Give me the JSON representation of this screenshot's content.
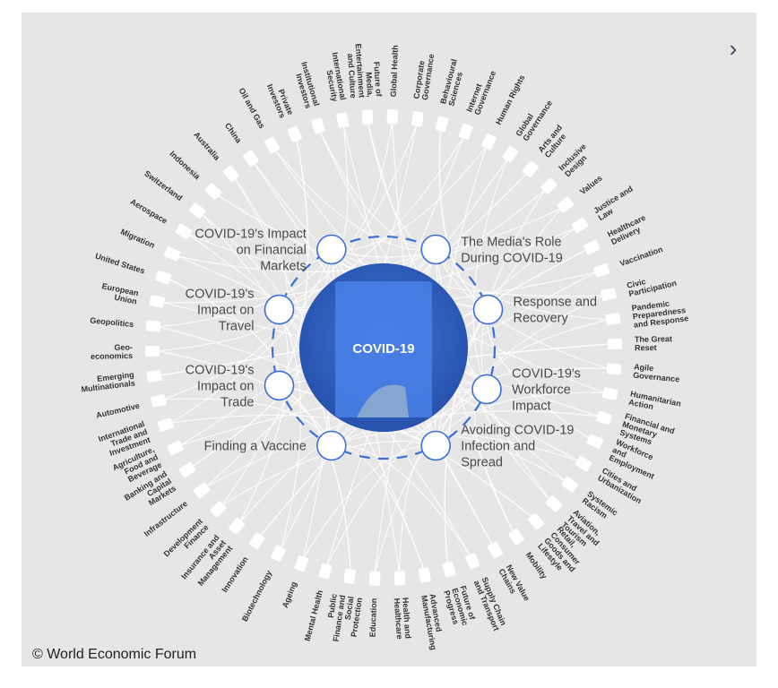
{
  "center": {
    "title": "COVID-19",
    "color": "#2f5fc7"
  },
  "copyright": "© World Economic Forum",
  "nav": {
    "next_icon": "chevron-right-icon",
    "next_glyph": "›"
  },
  "colors": {
    "background": "#e6e6e6",
    "accent_ring": "#3a6fd8",
    "node_fill": "#ffffff",
    "link": "#ffffff"
  },
  "inner_topics": [
    {
      "lines": [
        "The Media's Role",
        "During COVID-19"
      ]
    },
    {
      "lines": [
        "Response and",
        "Recovery"
      ]
    },
    {
      "lines": [
        "COVID-19's",
        "Workforce",
        "Impact"
      ]
    },
    {
      "lines": [
        "Avoiding COVID-19",
        "Infection and",
        "Spread"
      ]
    },
    {
      "lines": [
        "Finding a Vaccine"
      ]
    },
    {
      "lines": [
        "COVID-19's",
        "Impact on",
        "Trade"
      ]
    },
    {
      "lines": [
        "COVID-19's",
        "Impact on",
        "Travel"
      ]
    },
    {
      "lines": [
        "COVID-19's Impact",
        "on Financial",
        "Markets"
      ]
    }
  ],
  "outer_topics": [
    {
      "lines": [
        "Future of",
        "Media,",
        "Entertainment",
        "and Culture"
      ]
    },
    {
      "lines": [
        "Global Health"
      ]
    },
    {
      "lines": [
        "Corporate",
        "Governance"
      ]
    },
    {
      "lines": [
        "Behavioural",
        "Sciences"
      ]
    },
    {
      "lines": [
        "Internet",
        "Governance"
      ]
    },
    {
      "lines": [
        "Human Rights"
      ]
    },
    {
      "lines": [
        "Global",
        "Governance"
      ]
    },
    {
      "lines": [
        "Arts and",
        "Culture"
      ]
    },
    {
      "lines": [
        "Inclusive",
        "Design"
      ]
    },
    {
      "lines": [
        "Values"
      ]
    },
    {
      "lines": [
        "Justice and",
        "Law"
      ]
    },
    {
      "lines": [
        "Healthcare",
        "Delivery"
      ]
    },
    {
      "lines": [
        "Vaccination"
      ]
    },
    {
      "lines": [
        "Civic",
        "Participation"
      ]
    },
    {
      "lines": [
        "Pandemic",
        "Preparedness",
        "and Response"
      ]
    },
    {
      "lines": [
        "The Great",
        "Reset"
      ]
    },
    {
      "lines": [
        "Agile",
        "Governance"
      ]
    },
    {
      "lines": [
        "Humanitarian",
        "Action"
      ]
    },
    {
      "lines": [
        "Financial and",
        "Monetary",
        "Systems"
      ]
    },
    {
      "lines": [
        "Workforce",
        "and",
        "Employment"
      ]
    },
    {
      "lines": [
        "Cities and",
        "Urbanization"
      ]
    },
    {
      "lines": [
        "Systemic",
        "Racism"
      ]
    },
    {
      "lines": [
        "Aviation,",
        "Travel and",
        "Tourism"
      ]
    },
    {
      "lines": [
        "Retail,",
        "Consumer",
        "Goods and",
        "Lifestyle"
      ]
    },
    {
      "lines": [
        "Mobility"
      ]
    },
    {
      "lines": [
        "New Value",
        "Chains"
      ]
    },
    {
      "lines": [
        "Supply Chain",
        "and Transport"
      ]
    },
    {
      "lines": [
        "Future of",
        "Economic",
        "Progress"
      ]
    },
    {
      "lines": [
        "Advanced",
        "Manufacturing"
      ]
    },
    {
      "lines": [
        "Health and",
        "Healthcare"
      ]
    },
    {
      "lines": [
        "Education"
      ]
    },
    {
      "lines": [
        "Public",
        "Finance and",
        "Social",
        "Protection"
      ]
    },
    {
      "lines": [
        "Mental Health"
      ]
    },
    {
      "lines": [
        "Ageing"
      ]
    },
    {
      "lines": [
        "Biotechnology"
      ]
    },
    {
      "lines": [
        "Innovation"
      ]
    },
    {
      "lines": [
        "Insurance and",
        "Asset",
        "Management"
      ]
    },
    {
      "lines": [
        "Development",
        "Finance"
      ]
    },
    {
      "lines": [
        "Infrastructure"
      ]
    },
    {
      "lines": [
        "Banking and",
        "Capital",
        "Markets"
      ]
    },
    {
      "lines": [
        "Agriculture,",
        "Food and",
        "Beverage"
      ]
    },
    {
      "lines": [
        "International",
        "Trade and",
        "Investment"
      ]
    },
    {
      "lines": [
        "Automotive"
      ]
    },
    {
      "lines": [
        "Emerging",
        "Multinationals"
      ]
    },
    {
      "lines": [
        "Geo-",
        "economics"
      ]
    },
    {
      "lines": [
        "Geopolitics"
      ]
    },
    {
      "lines": [
        "European",
        "Union"
      ]
    },
    {
      "lines": [
        "United States"
      ]
    },
    {
      "lines": [
        "Migration"
      ]
    },
    {
      "lines": [
        "Aerospace"
      ]
    },
    {
      "lines": [
        "Switzerland"
      ]
    },
    {
      "lines": [
        "Indonesia"
      ]
    },
    {
      "lines": [
        "Australia"
      ]
    },
    {
      "lines": [
        "China"
      ]
    },
    {
      "lines": [
        "Oil and Gas"
      ]
    },
    {
      "lines": [
        "Private",
        "Investors"
      ]
    },
    {
      "lines": [
        "Institutional",
        "Investors"
      ]
    },
    {
      "lines": [
        "International",
        "Security"
      ]
    }
  ]
}
